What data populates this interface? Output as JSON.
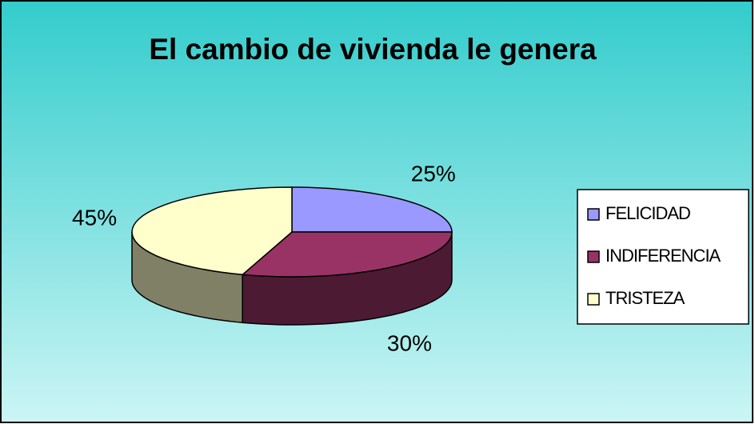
{
  "chart_data": {
    "type": "pie",
    "title": "El cambio de vivienda le genera",
    "categories": [
      "FELICIDAD",
      "INDIFERENCIA",
      "TRISTEZA"
    ],
    "values": [
      25,
      30,
      45
    ],
    "value_labels": [
      "25%",
      "30%",
      "45%"
    ],
    "colors": [
      "#9999ff",
      "#993366",
      "#ffffcc"
    ],
    "legend": "right"
  }
}
